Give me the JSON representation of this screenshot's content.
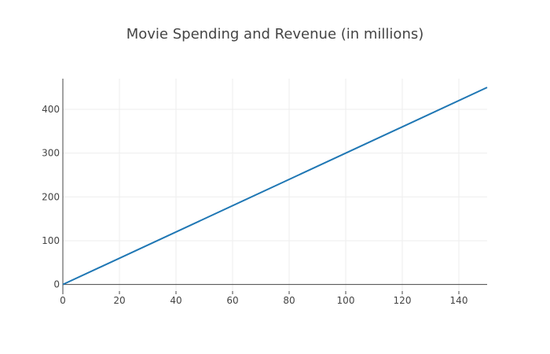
{
  "chart_data": {
    "type": "line",
    "title": "Movie Spending and Revenue (in millions)",
    "xlabel": "",
    "ylabel": "",
    "xlim": [
      0,
      150
    ],
    "ylim": [
      -15,
      470
    ],
    "x_ticks": [
      0,
      20,
      40,
      60,
      80,
      100,
      120,
      140
    ],
    "y_ticks": [
      0,
      100,
      200,
      300,
      400
    ],
    "grid": true,
    "series": [
      {
        "x": [
          0,
          150
        ],
        "y": [
          0,
          450
        ],
        "color": "#1f77b4"
      }
    ]
  }
}
